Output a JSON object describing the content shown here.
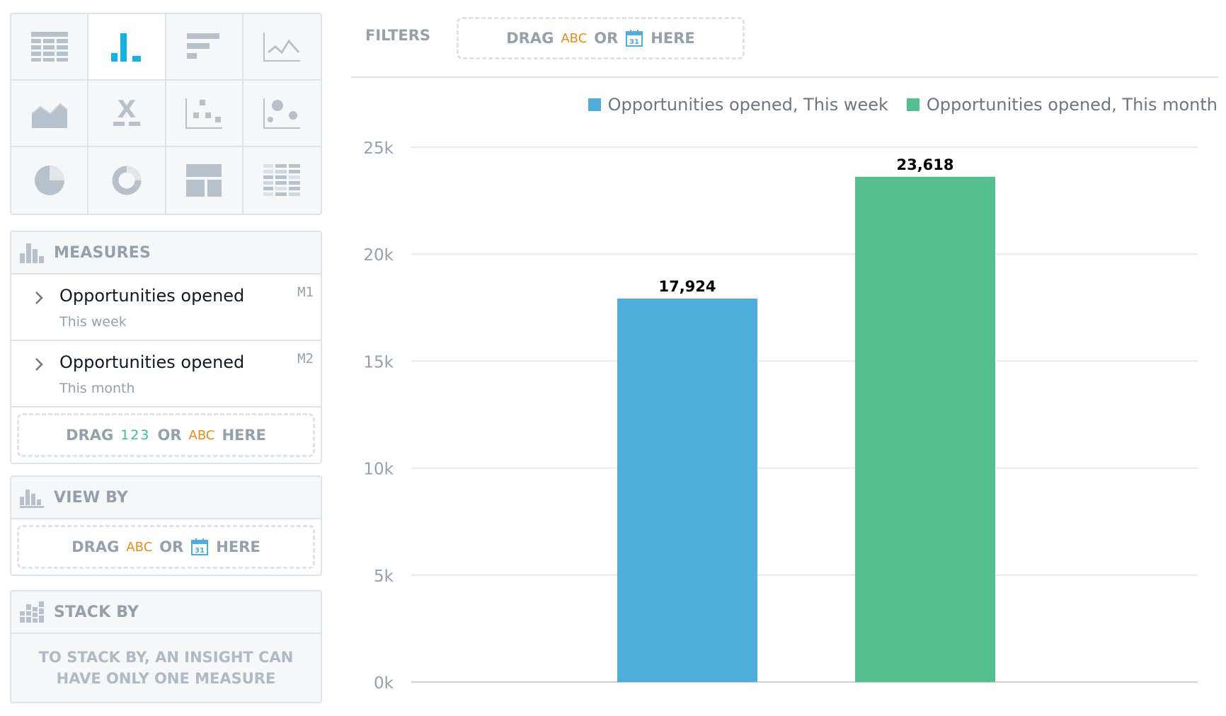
{
  "colors": {
    "series1": "#4eadda",
    "series2": "#56bf8f",
    "border": "#dde3ea",
    "muted_text": "#94a1ad",
    "attribute_token": "#e48c1e",
    "measure_token": "#3cbe8c",
    "active_icon": "#14b2e2"
  },
  "viz_types": [
    {
      "icon": "table-icon"
    },
    {
      "icon": "column-chart-icon",
      "active": true
    },
    {
      "icon": "bar-chart-icon"
    },
    {
      "icon": "line-chart-icon"
    },
    {
      "icon": "area-chart-icon"
    },
    {
      "icon": "headline-icon"
    },
    {
      "icon": "scatter-plot-icon"
    },
    {
      "icon": "bubble-chart-icon"
    },
    {
      "icon": "pie-chart-icon"
    },
    {
      "icon": "donut-chart-icon"
    },
    {
      "icon": "treemap-icon"
    },
    {
      "icon": "heatmap-icon"
    }
  ],
  "measures": {
    "title": "MEASURES",
    "items": [
      {
        "title": "Opportunities opened",
        "subtitle": "This week",
        "id": "M1"
      },
      {
        "title": "Opportunities opened",
        "subtitle": "This month",
        "id": "M2"
      }
    ],
    "dropzone": {
      "drag": "DRAG",
      "tok1": "123",
      "or": "OR",
      "tok2": "ABC",
      "here": "HERE"
    }
  },
  "view_by": {
    "title": "VIEW BY",
    "dropzone": {
      "drag": "DRAG",
      "tok1": "ABC",
      "or": "OR",
      "calendar_day": "31",
      "here": "HERE"
    }
  },
  "stack_by": {
    "title": "STACK BY",
    "note_line1": "TO STACK BY, AN INSIGHT CAN",
    "note_line2": "HAVE ONLY ONE MEASURE"
  },
  "filters": {
    "label": "FILTERS",
    "dropzone": {
      "drag": "DRAG",
      "tok1": "ABC",
      "or": "OR",
      "calendar_day": "31",
      "here": "HERE"
    }
  },
  "chart_data": {
    "type": "bar",
    "categories": [
      ""
    ],
    "series": [
      {
        "name": "Opportunities opened, This week",
        "values": [
          17924
        ],
        "label": "17,924"
      },
      {
        "name": "Opportunities opened, This month",
        "values": [
          23618
        ],
        "label": "23,618"
      }
    ],
    "ylim": [
      0,
      25000
    ],
    "yticks": [
      0,
      5000,
      10000,
      15000,
      20000,
      25000
    ],
    "ytick_labels": [
      "0k",
      "5k",
      "10k",
      "15k",
      "20k",
      "25k"
    ],
    "grid": true,
    "legend_position": "top-right"
  }
}
